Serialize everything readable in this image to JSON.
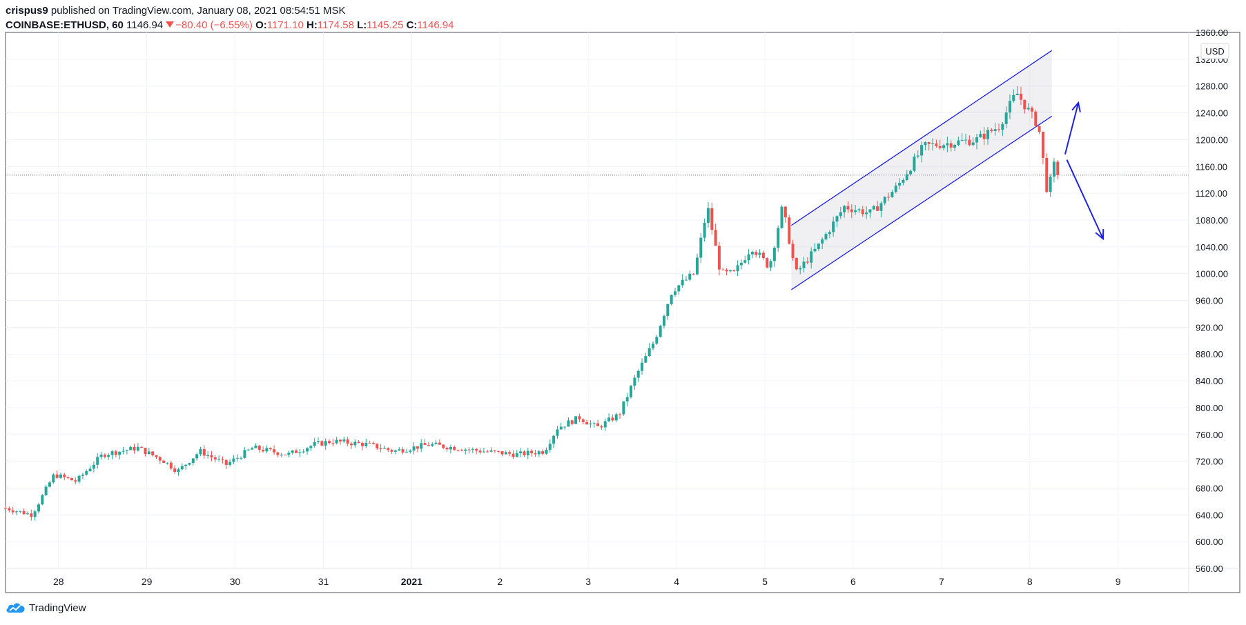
{
  "header": {
    "author": "crispus9",
    "published_text": "published on TradingView.com, January 08, 2021 08:54:51 MSK",
    "symbol": "COINBASE:ETHUSD, 60",
    "last": "1146.94",
    "change": "−80.40 (−6.55%)",
    "open_label": "O:",
    "open": "1171.10",
    "high_label": "H:",
    "high": "1174.58",
    "low_label": "L:",
    "low": "1145.25",
    "close_label": "C:",
    "close": "1146.94"
  },
  "footer": {
    "brand": "TradingView",
    "icon": "tradingview-cloud-logo"
  },
  "colors": {
    "up": "#26a69a",
    "down": "#ef5350",
    "drawing": "#1e22e0",
    "grid": "#f0f3fa",
    "text": "#131722"
  },
  "chart_data": {
    "type": "candlestick",
    "currency_label": "USD",
    "y_ticks": [
      560,
      600,
      640,
      680,
      720,
      760,
      800,
      840,
      880,
      920,
      960,
      1000,
      1040,
      1080,
      1120,
      1160,
      1200,
      1240,
      1280,
      1320,
      1360
    ],
    "ylim": [
      560,
      1360
    ],
    "x_ticks": [
      {
        "day": 28,
        "label": "28"
      },
      {
        "day": 29,
        "label": "29"
      },
      {
        "day": 30,
        "label": "30"
      },
      {
        "day": 31,
        "label": "31"
      },
      {
        "day": 32,
        "label": "2021"
      },
      {
        "day": 33,
        "label": "2"
      },
      {
        "day": 34,
        "label": "3"
      },
      {
        "day": 35,
        "label": "4"
      },
      {
        "day": 36,
        "label": "5"
      },
      {
        "day": 37,
        "label": "6"
      },
      {
        "day": 38,
        "label": "7"
      },
      {
        "day": 39,
        "label": "8"
      },
      {
        "day": 40,
        "label": "9"
      }
    ],
    "xlim": [
      27.4,
      40.8
    ],
    "last_price": 1146.94,
    "price_anchors": [
      [
        27.4,
        650
      ],
      [
        27.7,
        640
      ],
      [
        27.95,
        700
      ],
      [
        28.2,
        690
      ],
      [
        28.5,
        730
      ],
      [
        28.9,
        740
      ],
      [
        29.2,
        720
      ],
      [
        29.35,
        705
      ],
      [
        29.6,
        735
      ],
      [
        29.9,
        715
      ],
      [
        30.2,
        740
      ],
      [
        30.6,
        730
      ],
      [
        30.9,
        745
      ],
      [
        31.1,
        750
      ],
      [
        31.5,
        745
      ],
      [
        31.8,
        735
      ],
      [
        32.2,
        745
      ],
      [
        32.5,
        740
      ],
      [
        32.8,
        735
      ],
      [
        33.2,
        730
      ],
      [
        33.5,
        735
      ],
      [
        33.65,
        770
      ],
      [
        33.9,
        785
      ],
      [
        34.1,
        770
      ],
      [
        34.35,
        790
      ],
      [
        34.55,
        850
      ],
      [
        34.75,
        900
      ],
      [
        34.95,
        975
      ],
      [
        35.2,
        1000
      ],
      [
        35.35,
        1100
      ],
      [
        35.5,
        1000
      ],
      [
        35.65,
        1000
      ],
      [
        35.85,
        1040
      ],
      [
        36.05,
        1010
      ],
      [
        36.2,
        1100
      ],
      [
        36.35,
        1000
      ],
      [
        36.6,
        1040
      ],
      [
        36.9,
        1100
      ],
      [
        37.2,
        1090
      ],
      [
        37.5,
        1130
      ],
      [
        37.8,
        1190
      ],
      [
        38.1,
        1195
      ],
      [
        38.4,
        1200
      ],
      [
        38.65,
        1220
      ],
      [
        38.85,
        1270
      ],
      [
        39.0,
        1240
      ],
      [
        39.1,
        1220
      ],
      [
        39.2,
        1120
      ],
      [
        39.3,
        1175
      ],
      [
        39.35,
        1146.94
      ]
    ],
    "drawings": {
      "channel_upper": [
        [
          36.3,
          1072
        ],
        [
          39.25,
          1333
        ]
      ],
      "channel_lower": [
        [
          36.3,
          976
        ],
        [
          39.25,
          1235
        ]
      ],
      "arrow_up": [
        [
          39.4,
          1178
        ],
        [
          39.55,
          1255
        ]
      ],
      "arrow_down": [
        [
          39.42,
          1170
        ],
        [
          39.83,
          1052
        ]
      ]
    }
  }
}
